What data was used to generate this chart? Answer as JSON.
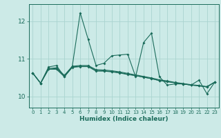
{
  "xlabel": "Humidex (Indice chaleur)",
  "xlim": [
    -0.5,
    23.5
  ],
  "ylim": [
    9.7,
    12.45
  ],
  "background_color": "#cceae7",
  "grid_color": "#aad4d0",
  "line_color": "#1a6b5a",
  "xticks": [
    0,
    1,
    2,
    3,
    4,
    5,
    6,
    7,
    8,
    9,
    10,
    11,
    12,
    13,
    14,
    15,
    16,
    17,
    18,
    19,
    20,
    21,
    22,
    23
  ],
  "yticks": [
    10,
    11,
    12
  ],
  "series": [
    [
      10.62,
      10.35,
      10.78,
      10.82,
      10.52,
      10.8,
      12.22,
      11.52,
      10.82,
      10.88,
      11.08,
      11.1,
      11.12,
      10.52,
      11.43,
      11.68,
      10.52,
      10.3,
      10.33,
      10.33,
      10.3,
      10.43,
      10.07,
      10.38
    ],
    [
      10.62,
      10.35,
      10.72,
      10.72,
      10.52,
      10.77,
      10.79,
      10.79,
      10.67,
      10.67,
      10.65,
      10.62,
      10.58,
      10.55,
      10.51,
      10.47,
      10.42,
      10.39,
      10.36,
      10.33,
      10.3,
      10.28,
      10.25,
      10.38
    ],
    [
      10.62,
      10.35,
      10.72,
      10.74,
      10.54,
      10.78,
      10.8,
      10.8,
      10.69,
      10.68,
      10.66,
      10.63,
      10.59,
      10.55,
      10.51,
      10.47,
      10.42,
      10.39,
      10.36,
      10.33,
      10.3,
      10.28,
      10.25,
      10.38
    ],
    [
      10.62,
      10.35,
      10.74,
      10.76,
      10.56,
      10.8,
      10.82,
      10.82,
      10.71,
      10.7,
      10.68,
      10.65,
      10.61,
      10.57,
      10.53,
      10.49,
      10.44,
      10.41,
      10.37,
      10.34,
      10.31,
      10.29,
      10.26,
      10.38
    ]
  ]
}
